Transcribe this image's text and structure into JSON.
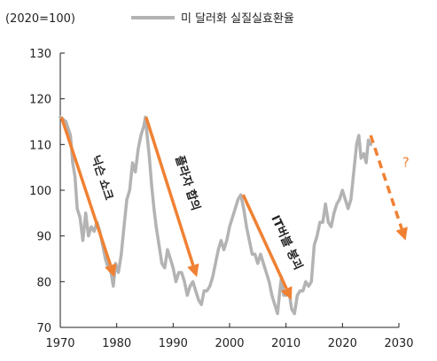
{
  "chart_data": {
    "type": "line",
    "unit_label": "(2020=100)",
    "ylim": [
      70,
      130
    ],
    "xlim": [
      1970,
      2030
    ],
    "x_ticks": [
      1970,
      1980,
      1990,
      2000,
      2010,
      2020,
      2030
    ],
    "y_ticks": [
      70,
      80,
      90,
      100,
      110,
      120,
      130
    ],
    "grid": false,
    "legend_position": "top",
    "series": [
      {
        "name": "미 달러화 실질실효환율",
        "color": "#b3b3b3",
        "points": [
          [
            1970.0,
            116
          ],
          [
            1971.0,
            115
          ],
          [
            1971.8,
            112
          ],
          [
            1972.2,
            106
          ],
          [
            1972.6,
            103
          ],
          [
            1973.0,
            96
          ],
          [
            1973.5,
            94
          ],
          [
            1974.0,
            89
          ],
          [
            1974.5,
            95
          ],
          [
            1975.0,
            90
          ],
          [
            1975.5,
            92
          ],
          [
            1976.0,
            91
          ],
          [
            1976.5,
            93
          ],
          [
            1977.0,
            91
          ],
          [
            1977.5,
            88
          ],
          [
            1978.0,
            85
          ],
          [
            1978.5,
            83
          ],
          [
            1979.0,
            82
          ],
          [
            1979.4,
            79
          ],
          [
            1979.8,
            84
          ],
          [
            1980.3,
            82
          ],
          [
            1980.8,
            86
          ],
          [
            1981.3,
            92
          ],
          [
            1981.8,
            98
          ],
          [
            1982.3,
            100
          ],
          [
            1982.8,
            106
          ],
          [
            1983.3,
            104
          ],
          [
            1983.8,
            109
          ],
          [
            1984.3,
            112
          ],
          [
            1984.8,
            114
          ],
          [
            1985.1,
            116
          ],
          [
            1985.4,
            112
          ],
          [
            1985.8,
            107
          ],
          [
            1986.2,
            101
          ],
          [
            1986.6,
            96
          ],
          [
            1987.0,
            92
          ],
          [
            1987.5,
            88
          ],
          [
            1988.0,
            84
          ],
          [
            1988.5,
            83
          ],
          [
            1989.0,
            87
          ],
          [
            1989.5,
            85
          ],
          [
            1990.0,
            83
          ],
          [
            1990.5,
            80
          ],
          [
            1991.0,
            82
          ],
          [
            1991.5,
            82
          ],
          [
            1992.0,
            80
          ],
          [
            1992.5,
            77
          ],
          [
            1993.0,
            79
          ],
          [
            1993.5,
            80
          ],
          [
            1994.0,
            78
          ],
          [
            1994.5,
            76
          ],
          [
            1995.0,
            75
          ],
          [
            1995.5,
            78
          ],
          [
            1996.0,
            78
          ],
          [
            1996.5,
            79
          ],
          [
            1997.0,
            81
          ],
          [
            1997.5,
            84
          ],
          [
            1998.0,
            87
          ],
          [
            1998.5,
            89
          ],
          [
            1999.0,
            87
          ],
          [
            1999.5,
            89
          ],
          [
            2000.0,
            92
          ],
          [
            2000.5,
            94
          ],
          [
            2001.0,
            96
          ],
          [
            2001.5,
            98
          ],
          [
            2002.0,
            99
          ],
          [
            2002.5,
            96
          ],
          [
            2003.0,
            92
          ],
          [
            2003.5,
            89
          ],
          [
            2004.0,
            86
          ],
          [
            2004.5,
            86
          ],
          [
            2005.0,
            84
          ],
          [
            2005.5,
            86
          ],
          [
            2006.0,
            84
          ],
          [
            2006.5,
            82
          ],
          [
            2007.0,
            80
          ],
          [
            2007.5,
            77
          ],
          [
            2008.0,
            75
          ],
          [
            2008.5,
            73
          ],
          [
            2008.9,
            78
          ],
          [
            2009.2,
            81
          ],
          [
            2009.6,
            77
          ],
          [
            2010.0,
            77
          ],
          [
            2010.5,
            78
          ],
          [
            2011.0,
            74
          ],
          [
            2011.5,
            73
          ],
          [
            2012.0,
            77
          ],
          [
            2012.5,
            78
          ],
          [
            2013.0,
            78
          ],
          [
            2013.5,
            80
          ],
          [
            2014.0,
            79
          ],
          [
            2014.5,
            80
          ],
          [
            2015.0,
            88
          ],
          [
            2015.5,
            90
          ],
          [
            2016.0,
            93
          ],
          [
            2016.5,
            93
          ],
          [
            2017.0,
            97
          ],
          [
            2017.5,
            93
          ],
          [
            2018.0,
            92
          ],
          [
            2018.5,
            95
          ],
          [
            2019.0,
            97
          ],
          [
            2019.5,
            98
          ],
          [
            2020.0,
            100
          ],
          [
            2020.5,
            98
          ],
          [
            2021.0,
            96
          ],
          [
            2021.5,
            98
          ],
          [
            2022.0,
            104
          ],
          [
            2022.5,
            110
          ],
          [
            2022.9,
            112
          ],
          [
            2023.3,
            107
          ],
          [
            2023.8,
            108
          ],
          [
            2024.2,
            106
          ],
          [
            2024.6,
            111
          ],
          [
            2025.0,
            110
          ]
        ]
      }
    ],
    "annotations": [
      {
        "text": "닉슨 쇼크",
        "from": [
          1970.2,
          116
        ],
        "to": [
          1979.6,
          81
        ],
        "dashed": false
      },
      {
        "text": "플라자 합의",
        "from": [
          1985.2,
          116
        ],
        "to": [
          1994.2,
          81
        ],
        "dashed": false
      },
      {
        "text": "IT버블 붕괴",
        "from": [
          2002.4,
          99
        ],
        "to": [
          2011.0,
          76
        ],
        "dashed": false
      },
      {
        "text": "?",
        "from": [
          2025.0,
          112
        ],
        "to": [
          2031.2,
          89
        ],
        "dashed": true
      }
    ],
    "arrow_color": "#F08133"
  }
}
